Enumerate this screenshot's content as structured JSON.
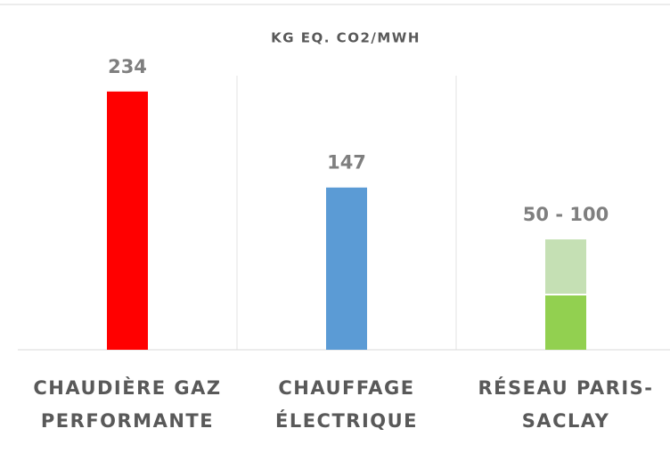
{
  "chart_data": {
    "type": "bar",
    "title": "KG EQ. CO2/MWH",
    "categories": [
      "CHAUDIÈRE GAZ PERFORMANTE",
      "CHAUFFAGE ÉLECTRIQUE",
      "RÉSEAU PARIS-SACLAY"
    ],
    "series": [
      {
        "colors": [
          "#ff0000",
          "#5b9bd5",
          "#92d050"
        ],
        "values": [
          234,
          147,
          50
        ]
      },
      {
        "color": "#c5e0b4",
        "values": [
          null,
          null,
          50
        ],
        "value_labels": [
          null,
          null,
          "50 - 100"
        ]
      }
    ],
    "ylim": [
      0,
      250
    ]
  }
}
